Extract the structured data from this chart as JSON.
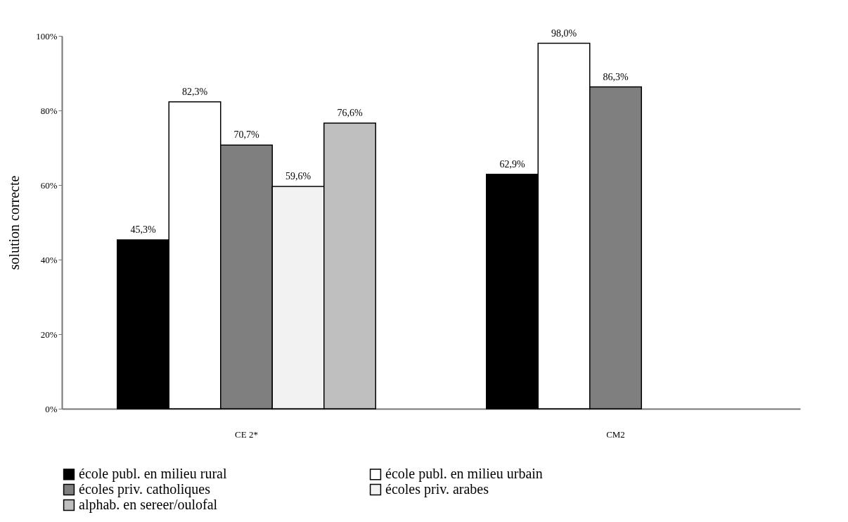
{
  "chart_data": {
    "type": "bar",
    "ylabel": "solution correcte",
    "categories": [
      "CE 2*",
      "CM2"
    ],
    "series": [
      {
        "name": "école publ. en milieu rural",
        "color": "#000000",
        "values": [
          45.3,
          62.9
        ],
        "value_labels": [
          "45,3%",
          "62,9%"
        ]
      },
      {
        "name": "école publ. en milieu urbain",
        "color": "#ffffff",
        "values": [
          82.3,
          98.0
        ],
        "value_labels": [
          "82,3%",
          "98,0%"
        ]
      },
      {
        "name": "écoles priv. catholiques",
        "color": "#7f7f7f",
        "values": [
          70.7,
          86.3
        ],
        "value_labels": [
          "70,7%",
          "86,3%"
        ]
      },
      {
        "name": "écoles priv. arabes",
        "color": "#f2f2f2",
        "values": [
          59.6,
          null
        ],
        "value_labels": [
          "59,6%",
          null
        ]
      },
      {
        "name": "alphab. en sereer/oulofal",
        "color": "#bfbfbf",
        "values": [
          76.6,
          null
        ],
        "value_labels": [
          "76,6%",
          null
        ]
      }
    ],
    "ylim": [
      0,
      100
    ],
    "yticks": [
      {
        "value": 0,
        "label": "0%"
      },
      {
        "value": 20,
        "label": "20%"
      },
      {
        "value": 40,
        "label": "40%"
      },
      {
        "value": 60,
        "label": "60%"
      },
      {
        "value": 80,
        "label": "80%"
      },
      {
        "value": 100,
        "label": "100%"
      }
    ],
    "grid": false,
    "legend": "bottom"
  }
}
